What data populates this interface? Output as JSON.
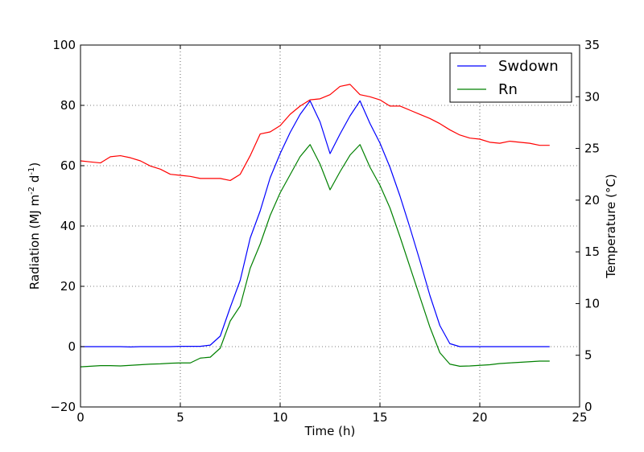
{
  "chart_data": {
    "type": "line",
    "xlabel": "Time (h)",
    "ylabel": {
      "left": "Radiation (MJ m",
      "exp1": "-2",
      "mid": " d",
      "exp2": "-1",
      "right": ")"
    },
    "ylabel_right": "Temperature (°C)",
    "xlim": [
      0,
      25
    ],
    "ylim": [
      -20,
      100
    ],
    "ylim_right": [
      0,
      35
    ],
    "xticks": [
      0,
      5,
      10,
      15,
      20,
      25
    ],
    "xtick_labels": [
      "0",
      "5",
      "10",
      "15",
      "20",
      "25"
    ],
    "yticks": [
      -20,
      0,
      20,
      40,
      60,
      80,
      100
    ],
    "ytick_labels": [
      "−20",
      "0",
      "20",
      "40",
      "60",
      "80",
      "100"
    ],
    "yticks_right": [
      0,
      5,
      10,
      15,
      20,
      25,
      30,
      35
    ],
    "ytick_labels_right": [
      "0",
      "5",
      "10",
      "15",
      "20",
      "25",
      "30",
      "35"
    ],
    "grid": true,
    "legend_position": "top-right",
    "series": [
      {
        "name": "Swdown",
        "axis": "left",
        "color": "#0000ff",
        "x": [
          0,
          0.5,
          1,
          1.5,
          2,
          2.5,
          3,
          3.5,
          4,
          4.5,
          5,
          5.5,
          6,
          6.5,
          7,
          7.5,
          8,
          8.5,
          9,
          9.5,
          10,
          10.5,
          11,
          11.5,
          12,
          12.5,
          13,
          13.5,
          14,
          14.5,
          15,
          15.5,
          16,
          16.5,
          17,
          17.5,
          18,
          18.5,
          19,
          19.5,
          20,
          20.5,
          21,
          21.5,
          22,
          22.5,
          23,
          23.5
        ],
        "values": [
          0,
          0,
          0,
          0,
          0,
          -0.1,
          0,
          0,
          0,
          0,
          0.1,
          0.1,
          0.1,
          0.5,
          3.5,
          13,
          22,
          36,
          45,
          56,
          64,
          71,
          77,
          81.5,
          74.5,
          64,
          70.5,
          76.5,
          81.5,
          74,
          67.5,
          59.5,
          50,
          39.5,
          28.5,
          17,
          7,
          1,
          0,
          0,
          0,
          0,
          0,
          0,
          0,
          0,
          0,
          0
        ]
      },
      {
        "name": "Rn",
        "axis": "left",
        "color": "#008000",
        "x": [
          0,
          0.5,
          1,
          1.5,
          2,
          2.5,
          3,
          3.5,
          4,
          4.5,
          5,
          5.5,
          6,
          6.5,
          7,
          7.5,
          8,
          8.5,
          9,
          9.5,
          10,
          10.5,
          11,
          11.5,
          12,
          12.5,
          13,
          13.5,
          14,
          14.5,
          15,
          15.5,
          16,
          16.5,
          17,
          17.5,
          18,
          18.5,
          19,
          19.5,
          20,
          20.5,
          21,
          21.5,
          22,
          22.5,
          23,
          23.5
        ],
        "values": [
          -6.7,
          -6.5,
          -6.3,
          -6.3,
          -6.4,
          -6.2,
          -6.0,
          -5.8,
          -5.7,
          -5.5,
          -5.4,
          -5.4,
          -3.8,
          -3.5,
          -0.5,
          8.5,
          13.5,
          26,
          34,
          43.5,
          51,
          57,
          63,
          67,
          60.5,
          52,
          58,
          63.5,
          67,
          59.5,
          53.5,
          46,
          36.5,
          26.5,
          16.5,
          6.5,
          -2,
          -5.8,
          -6.5,
          -6.4,
          -6.2,
          -6.0,
          -5.6,
          -5.4,
          -5.2,
          -5.0,
          -4.8,
          -4.8
        ]
      },
      {
        "axis": "right",
        "color": "#ff0000",
        "x": [
          0,
          0.5,
          1,
          1.5,
          2,
          2.5,
          3,
          3.5,
          4,
          4.5,
          5,
          5.5,
          6,
          6.5,
          7,
          7.5,
          8,
          8.5,
          9,
          9.5,
          10,
          10.5,
          11,
          11.5,
          12,
          12.5,
          13,
          13.5,
          14,
          14.5,
          15,
          15.5,
          16,
          16.5,
          17,
          17.5,
          18,
          18.5,
          19,
          19.5,
          20,
          20.5,
          21,
          21.5,
          22,
          22.5,
          23,
          23.5
        ],
        "values": [
          23.8,
          23.7,
          23.6,
          24.2,
          24.3,
          24.1,
          23.8,
          23.3,
          23.0,
          22.5,
          22.4,
          22.3,
          22.1,
          22.1,
          22.1,
          21.9,
          22.5,
          24.3,
          26.4,
          26.6,
          27.2,
          28.3,
          29.1,
          29.7,
          29.8,
          30.2,
          31.0,
          31.2,
          30.2,
          30.0,
          29.7,
          29.1,
          29.1,
          28.7,
          28.3,
          27.9,
          27.4,
          26.8,
          26.3,
          26.0,
          25.9,
          25.6,
          25.5,
          25.7,
          25.6,
          25.5,
          25.3,
          25.3
        ]
      }
    ]
  }
}
